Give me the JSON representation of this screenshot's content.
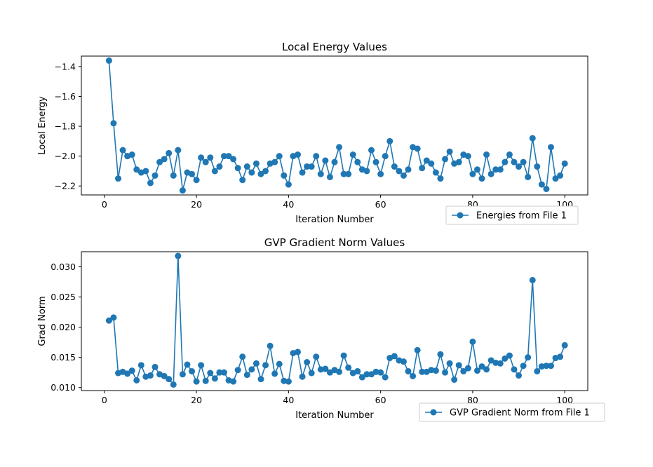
{
  "colors": {
    "series": "#1f77b4",
    "axis": "#000000",
    "legend_border": "#cccccc"
  },
  "chart_data": [
    {
      "type": "line",
      "title": "Local Energy Values",
      "xlabel": "Iteration Number",
      "ylabel": "Local Energy",
      "xlim": [
        -5,
        105
      ],
      "ylim": [
        -2.26,
        -1.33
      ],
      "xticks": [
        0,
        20,
        40,
        60,
        80,
        100
      ],
      "yticks": [
        -1.4,
        -1.6,
        -1.8,
        -2.0,
        -2.2
      ],
      "ytick_labels": [
        "−1.4",
        "−1.6",
        "−1.8",
        "−2.0",
        "−2.2"
      ],
      "legend_position": "below-right",
      "grid": false,
      "series": [
        {
          "name": "Energies from File 1",
          "marker": "circle",
          "x": [
            1,
            2,
            3,
            4,
            5,
            6,
            7,
            8,
            9,
            10,
            11,
            12,
            13,
            14,
            15,
            16,
            17,
            18,
            19,
            20,
            21,
            22,
            23,
            24,
            25,
            26,
            27,
            28,
            29,
            30,
            31,
            32,
            33,
            34,
            35,
            36,
            37,
            38,
            39,
            40,
            41,
            42,
            43,
            44,
            45,
            46,
            47,
            48,
            49,
            50,
            51,
            52,
            53,
            54,
            55,
            56,
            57,
            58,
            59,
            60,
            61,
            62,
            63,
            64,
            65,
            66,
            67,
            68,
            69,
            70,
            71,
            72,
            73,
            74,
            75,
            76,
            77,
            78,
            79,
            80,
            81,
            82,
            83,
            84,
            85,
            86,
            87,
            88,
            89,
            90,
            91,
            92,
            93,
            94,
            95,
            96,
            97,
            98,
            99,
            100
          ],
          "y": [
            -1.36,
            -1.78,
            -2.15,
            -1.96,
            -2.0,
            -1.99,
            -2.09,
            -2.11,
            -2.1,
            -2.18,
            -2.13,
            -2.04,
            -2.02,
            -1.98,
            -2.13,
            -1.96,
            -2.23,
            -2.11,
            -2.12,
            -2.16,
            -2.01,
            -2.04,
            -2.01,
            -2.1,
            -2.07,
            -2.0,
            -2.0,
            -2.02,
            -2.08,
            -2.16,
            -2.07,
            -2.11,
            -2.05,
            -2.12,
            -2.1,
            -2.05,
            -2.04,
            -2.0,
            -2.13,
            -2.19,
            -2.0,
            -1.99,
            -2.11,
            -2.07,
            -2.07,
            -2.0,
            -2.12,
            -2.03,
            -2.14,
            -2.04,
            -1.94,
            -2.12,
            -2.12,
            -1.99,
            -2.04,
            -2.09,
            -2.1,
            -1.96,
            -2.04,
            -2.12,
            -2.0,
            -1.9,
            -2.07,
            -2.1,
            -2.13,
            -2.09,
            -1.94,
            -1.95,
            -2.08,
            -2.03,
            -2.05,
            -2.11,
            -2.15,
            -2.02,
            -1.97,
            -2.05,
            -2.04,
            -1.99,
            -2.0,
            -2.12,
            -2.09,
            -2.15,
            -1.99,
            -2.12,
            -2.09,
            -2.09,
            -2.04,
            -1.99,
            -2.04,
            -2.07,
            -2.04,
            -2.14,
            -1.88,
            -2.07,
            -2.19,
            -2.22,
            -1.94,
            -2.15,
            -2.13,
            -2.05
          ]
        }
      ]
    },
    {
      "type": "line",
      "title": "GVP Gradient Norm Values",
      "xlabel": "Iteration Number",
      "ylabel": "Grad Norm",
      "xlim": [
        -5,
        105
      ],
      "ylim": [
        0.0095,
        0.0325
      ],
      "xticks": [
        0,
        20,
        40,
        60,
        80,
        100
      ],
      "yticks": [
        0.03,
        0.025,
        0.02,
        0.015,
        0.01
      ],
      "ytick_labels": [
        "0.030",
        "0.025",
        "0.020",
        "0.015",
        "0.010"
      ],
      "legend_position": "below-right",
      "grid": false,
      "series": [
        {
          "name": "GVP Gradient Norm from File 1",
          "marker": "circle",
          "x": [
            1,
            2,
            3,
            4,
            5,
            6,
            7,
            8,
            9,
            10,
            11,
            12,
            13,
            14,
            15,
            16,
            17,
            18,
            19,
            20,
            21,
            22,
            23,
            24,
            25,
            26,
            27,
            28,
            29,
            30,
            31,
            32,
            33,
            34,
            35,
            36,
            37,
            38,
            39,
            40,
            41,
            42,
            43,
            44,
            45,
            46,
            47,
            48,
            49,
            50,
            51,
            52,
            53,
            54,
            55,
            56,
            57,
            58,
            59,
            60,
            61,
            62,
            63,
            64,
            65,
            66,
            67,
            68,
            69,
            70,
            71,
            72,
            73,
            74,
            75,
            76,
            77,
            78,
            79,
            80,
            81,
            82,
            83,
            84,
            85,
            86,
            87,
            88,
            89,
            90,
            91,
            92,
            93,
            94,
            95,
            96,
            97,
            98,
            99,
            100
          ],
          "y": [
            0.0211,
            0.0216,
            0.0124,
            0.0126,
            0.0123,
            0.0128,
            0.0112,
            0.0137,
            0.0118,
            0.012,
            0.0134,
            0.0122,
            0.0119,
            0.0114,
            0.0105,
            0.0318,
            0.0122,
            0.0138,
            0.0127,
            0.011,
            0.0137,
            0.0111,
            0.0124,
            0.0115,
            0.0125,
            0.0125,
            0.0112,
            0.011,
            0.0129,
            0.0151,
            0.0121,
            0.013,
            0.014,
            0.0114,
            0.0137,
            0.0169,
            0.0123,
            0.0139,
            0.0111,
            0.011,
            0.0157,
            0.0159,
            0.0118,
            0.0142,
            0.0124,
            0.0151,
            0.013,
            0.0131,
            0.0125,
            0.0129,
            0.0126,
            0.0153,
            0.0133,
            0.0124,
            0.0127,
            0.0117,
            0.0122,
            0.0122,
            0.0126,
            0.0125,
            0.0117,
            0.0149,
            0.0152,
            0.0145,
            0.0143,
            0.0127,
            0.0119,
            0.0162,
            0.0126,
            0.0126,
            0.0129,
            0.0128,
            0.0155,
            0.0125,
            0.014,
            0.0113,
            0.0137,
            0.0127,
            0.0132,
            0.0176,
            0.0128,
            0.0135,
            0.013,
            0.0145,
            0.0141,
            0.014,
            0.0148,
            0.0153,
            0.013,
            0.012,
            0.0136,
            0.015,
            0.0278,
            0.0127,
            0.0135,
            0.0136,
            0.0136,
            0.0149,
            0.0151,
            0.017
          ]
        }
      ]
    }
  ]
}
